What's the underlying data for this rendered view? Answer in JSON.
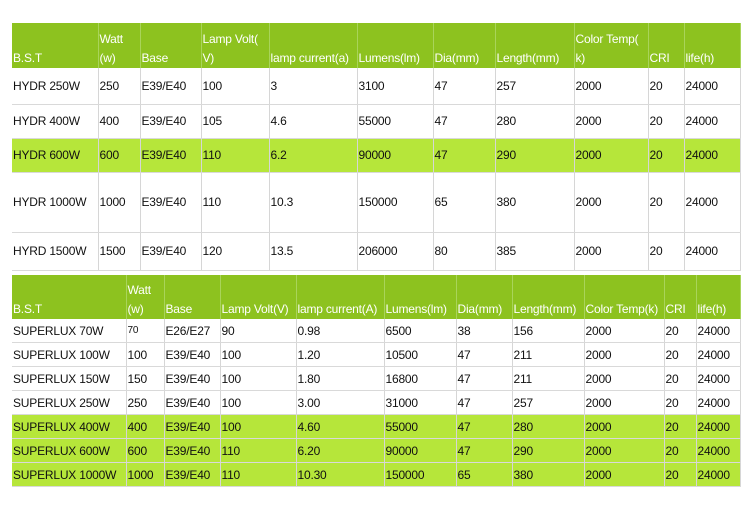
{
  "table1": {
    "headers": [
      "B.S.T",
      "Watt (w)",
      "Base",
      "Lamp Volt( V)",
      "lamp current(a)",
      "Lumens(lm)",
      "Dia(mm)",
      "Length(mm)",
      "Color Temp( k)",
      "CRI",
      "life(h)"
    ],
    "rows": [
      {
        "cells": [
          "HYDR 250W",
          "250",
          "E39/E40",
          "100",
          "3",
          "3100",
          "47",
          "257",
          "2000",
          "20",
          "24000"
        ],
        "highlight": false
      },
      {
        "cells": [
          "HYDR 400W",
          "400",
          "E39/E40",
          "105",
          "4.6",
          "55000",
          "47",
          "280",
          "2000",
          "20",
          "24000"
        ],
        "highlight": false
      },
      {
        "cells": [
          "HYDR 600W",
          "600",
          "E39/E40",
          "110",
          "6.2",
          "90000",
          "47",
          "290",
          "2000",
          "20",
          "24000"
        ],
        "highlight": true
      },
      {
        "cells": [
          "HYDR 1000W",
          "1000",
          "E39/E40",
          "110",
          "10.3",
          "150000",
          "65",
          "380",
          "2000",
          "20",
          "24000"
        ],
        "highlight": false
      },
      {
        "cells": [
          "HYRD 1500W",
          "1500",
          "E39/E40",
          "120",
          "13.5",
          "206000",
          "80",
          "385",
          "2000",
          "20",
          "24000"
        ],
        "highlight": false
      }
    ]
  },
  "table2": {
    "headers": [
      "B.S.T",
      "Watt (w)",
      "Base",
      "Lamp Volt(V)",
      "lamp current(A)",
      "Lumens(lm)",
      "Dia(mm)",
      "Length(mm)",
      "Color Temp(k)",
      "CRI",
      "life(h)"
    ],
    "rows": [
      {
        "cells": [
          "SUPERLUX 70W",
          "70",
          "E26/E27",
          "90",
          "0.98",
          "6500",
          "38",
          "156",
          "2000",
          "20",
          "24000"
        ],
        "highlight": false
      },
      {
        "cells": [
          "SUPERLUX 100W",
          "100",
          "E39/E40",
          "100",
          "1.20",
          "10500",
          "47",
          "211",
          "2000",
          "20",
          "24000"
        ],
        "highlight": false
      },
      {
        "cells": [
          "SUPERLUX 150W",
          "150",
          "E39/E40",
          "100",
          "1.80",
          "16800",
          "47",
          "211",
          "2000",
          "20",
          "24000"
        ],
        "highlight": false
      },
      {
        "cells": [
          "SUPERLUX 250W",
          "250",
          "E39/E40",
          "100",
          "3.00",
          "31000",
          "47",
          "257",
          "2000",
          "20",
          "24000"
        ],
        "highlight": false
      },
      {
        "cells": [
          "SUPERLUX 400W",
          "400",
          "E39/E40",
          "100",
          "4.60",
          "55000",
          "47",
          "280",
          "2000",
          "20",
          "24000"
        ],
        "highlight": true
      },
      {
        "cells": [
          "SUPERLUX 600W",
          "600",
          "E39/E40",
          "110",
          "6.20",
          "90000",
          "47",
          "290",
          "2000",
          "20",
          "24000"
        ],
        "highlight": true
      },
      {
        "cells": [
          "SUPERLUX 1000W",
          "1000",
          "E39/E40",
          "110",
          "10.30",
          "150000",
          "65",
          "380",
          "2000",
          "20",
          "24000"
        ],
        "highlight": true
      }
    ]
  },
  "colors": {
    "header_bg": "#8dc21f",
    "header_text": "#ffffff",
    "highlight_bg": "#b6e63a"
  }
}
